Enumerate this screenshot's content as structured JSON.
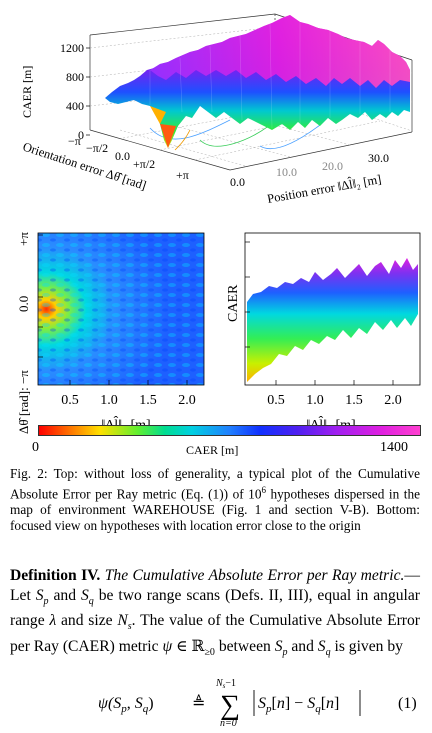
{
  "top_plot": {
    "zlabel": "CAER [m]",
    "zticks": [
      "1200",
      "800",
      "400",
      "0"
    ],
    "xlabel": "Orientation error Δθ̂ [rad]",
    "xticks": [
      "−π",
      "−π/2",
      "0.0",
      "+π/2",
      "+π"
    ],
    "ylabel": "Position error ‖Δl̂‖₂ [m]",
    "yticks": [
      "0.0",
      "10.0",
      "20.0",
      "30.0"
    ]
  },
  "bottom_left_plot": {
    "ylabel": "Δθ̂ [rad]: −π",
    "yticks": [
      "+π",
      "0.0",
      "−π"
    ],
    "xticks": [
      "0.5",
      "1.0",
      "1.5",
      "2.0"
    ],
    "xlabel": "‖Δl̂‖₂ [m]"
  },
  "bottom_right_plot": {
    "ylabel": "CAER",
    "xticks": [
      "0.5",
      "1.0",
      "1.5",
      "2.0"
    ],
    "xlabel": "‖Δl̂‖₂ [m]"
  },
  "colorbar": {
    "min_label": "0",
    "mid_label": "CAER [m]",
    "max_label": "1400"
  },
  "caption": {
    "p1": "Fig. 2: Top: without loss of generality, a typical plot of the Cumulative Absolute Error per Ray metric (Eq. (1)) of 10",
    "sup": "6",
    "p2": " hypotheses dispersed in the map of environment WAREHOUSE (Fig. 1 and section V-B). Bottom: focused view on hypotheses with location error close to the origin"
  },
  "definition": {
    "label": "Definition IV.",
    "title": "The Cumulative Absolute Error per Ray metric.",
    "t1": "—Let ",
    "Sp": "S",
    "p": "p",
    "t2": " and ",
    "q": "q",
    "t3": " be two range scans (Defs. II, III), equal in angular range ",
    "lambda": "λ",
    "t4": " and size ",
    "N": "N",
    "s": "s",
    "t5": ". The value of the Cumulative Absolute Error per Ray (CAER) metric ",
    "psi": "ψ",
    "t6": " ∈ ℝ",
    "geq0": "≥0",
    "t7": " between ",
    "t8": " and ",
    "t9": " is given by"
  },
  "equation": {
    "lhs": "ψ(S",
    "def": "≜",
    "sum_top": "N",
    "sum_top_sub": "s",
    "sum_top_rest": "−1",
    "sum_bottom": "n=0",
    "number": "(1)"
  }
}
